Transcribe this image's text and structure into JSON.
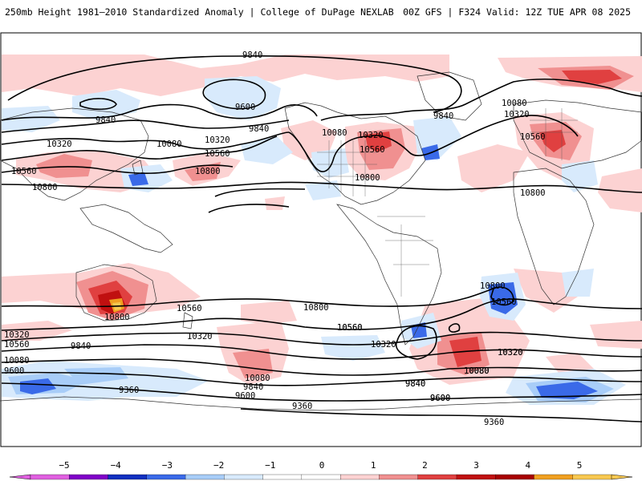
{
  "header": {
    "left_title": "250mb Height 1981–2010 Standardized Anomaly | College of DuPage NEXLAB",
    "right_title": "00Z GFS | F324 Valid: 12Z TUE APR 08 2025"
  },
  "colorbar": {
    "ticks": [
      "−5",
      "−4",
      "−3",
      "−2",
      "−1",
      "0",
      "1",
      "2",
      "3",
      "4",
      "5"
    ],
    "colors": [
      "#e060e0",
      "#8000c8",
      "#1030c0",
      "#3a6ae8",
      "#a8cdf8",
      "#d8eafc",
      "#ffffff",
      "#ffffff",
      "#fcd2d2",
      "#f09090",
      "#e04040",
      "#c01010",
      "#a80000",
      "#f0a020",
      "#f8c850"
    ]
  },
  "contour_labels": [
    "9840",
    "9600",
    "9840",
    "9840",
    "10080",
    "10320",
    "10560",
    "10320",
    "10800",
    "10560",
    "10080",
    "10320",
    "10560",
    "10800",
    "10080",
    "10320",
    "10560",
    "10800",
    "9840",
    "10800",
    "10560",
    "10320",
    "10800",
    "10560",
    "10320",
    "10080",
    "9840",
    "9600",
    "9360",
    "10560",
    "10080",
    "9840",
    "9600",
    "10800",
    "10560",
    "10320",
    "10080",
    "9840",
    "9600",
    "10320",
    "10080",
    "9840",
    "9600",
    "9360",
    "10800",
    "10560",
    "10320",
    "10080",
    "9360"
  ],
  "map": {
    "projection": "equirectangular",
    "field": "250mb geopotential height (m)",
    "shading": "standardized anomaly"
  }
}
